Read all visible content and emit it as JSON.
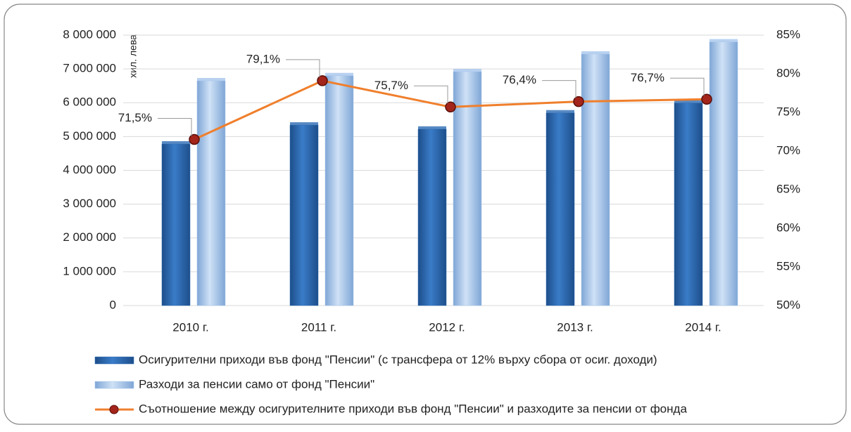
{
  "chart_data": {
    "type": "bar_line",
    "y_axis_label": "хил. лева",
    "categories": [
      "2010 г.",
      "2011 г.",
      "2012 г.",
      "2013 г.",
      "2014 г."
    ],
    "series": [
      {
        "name": "Осигурителни приходи във фонд \"Пенсии\" (с трансфера от 12% върху сбора от осиг. доходи)",
        "color": "#2e6db4",
        "type": "bar",
        "values": [
          4780000,
          5340000,
          5220000,
          5700000,
          5990000
        ]
      },
      {
        "name": "Разходи за пенсии само от фонд \"Пенсии\"",
        "color": "#a6c6ec",
        "type": "bar",
        "values": [
          6650000,
          6800000,
          6920000,
          7440000,
          7800000
        ]
      },
      {
        "name": "Съотношение между осигурителните приходи във фонд \"Пенсии\" и разходите за пенсии от фонда",
        "color": "#f07f2c",
        "type": "line",
        "axis": "y2",
        "values": [
          71.5,
          79.1,
          75.7,
          76.4,
          76.7
        ],
        "value_labels": [
          "71,5%",
          "79,1%",
          "75,7%",
          "76,4%",
          "76,7%"
        ]
      }
    ],
    "ylim": [
      0,
      8000000
    ],
    "yticks": [
      0,
      {
        "value": 1000000,
        "label": "1 000 000"
      },
      {
        "value": 2000000,
        "label": "2 000 000"
      },
      {
        "value": 3000000,
        "label": "3 000 000"
      },
      {
        "value": 4000000,
        "label": "4 000 000"
      },
      {
        "value": 5000000,
        "label": "5 000 000"
      },
      {
        "value": 6000000,
        "label": "6 000 000"
      },
      {
        "value": 7000000,
        "label": "7 000 000"
      },
      {
        "value": 8000000,
        "label": "8 000 000"
      }
    ],
    "y2lim": [
      50,
      85
    ],
    "y2ticks": [
      {
        "value": 50,
        "label": "50%"
      },
      {
        "value": 55,
        "label": "55%"
      },
      {
        "value": 60,
        "label": "60%"
      },
      {
        "value": 65,
        "label": "65%"
      },
      {
        "value": 70,
        "label": "70%"
      },
      {
        "value": 75,
        "label": "75%"
      },
      {
        "value": 80,
        "label": "80%"
      },
      {
        "value": 85,
        "label": "85%"
      }
    ],
    "grid": true,
    "legend": "bottom"
  }
}
